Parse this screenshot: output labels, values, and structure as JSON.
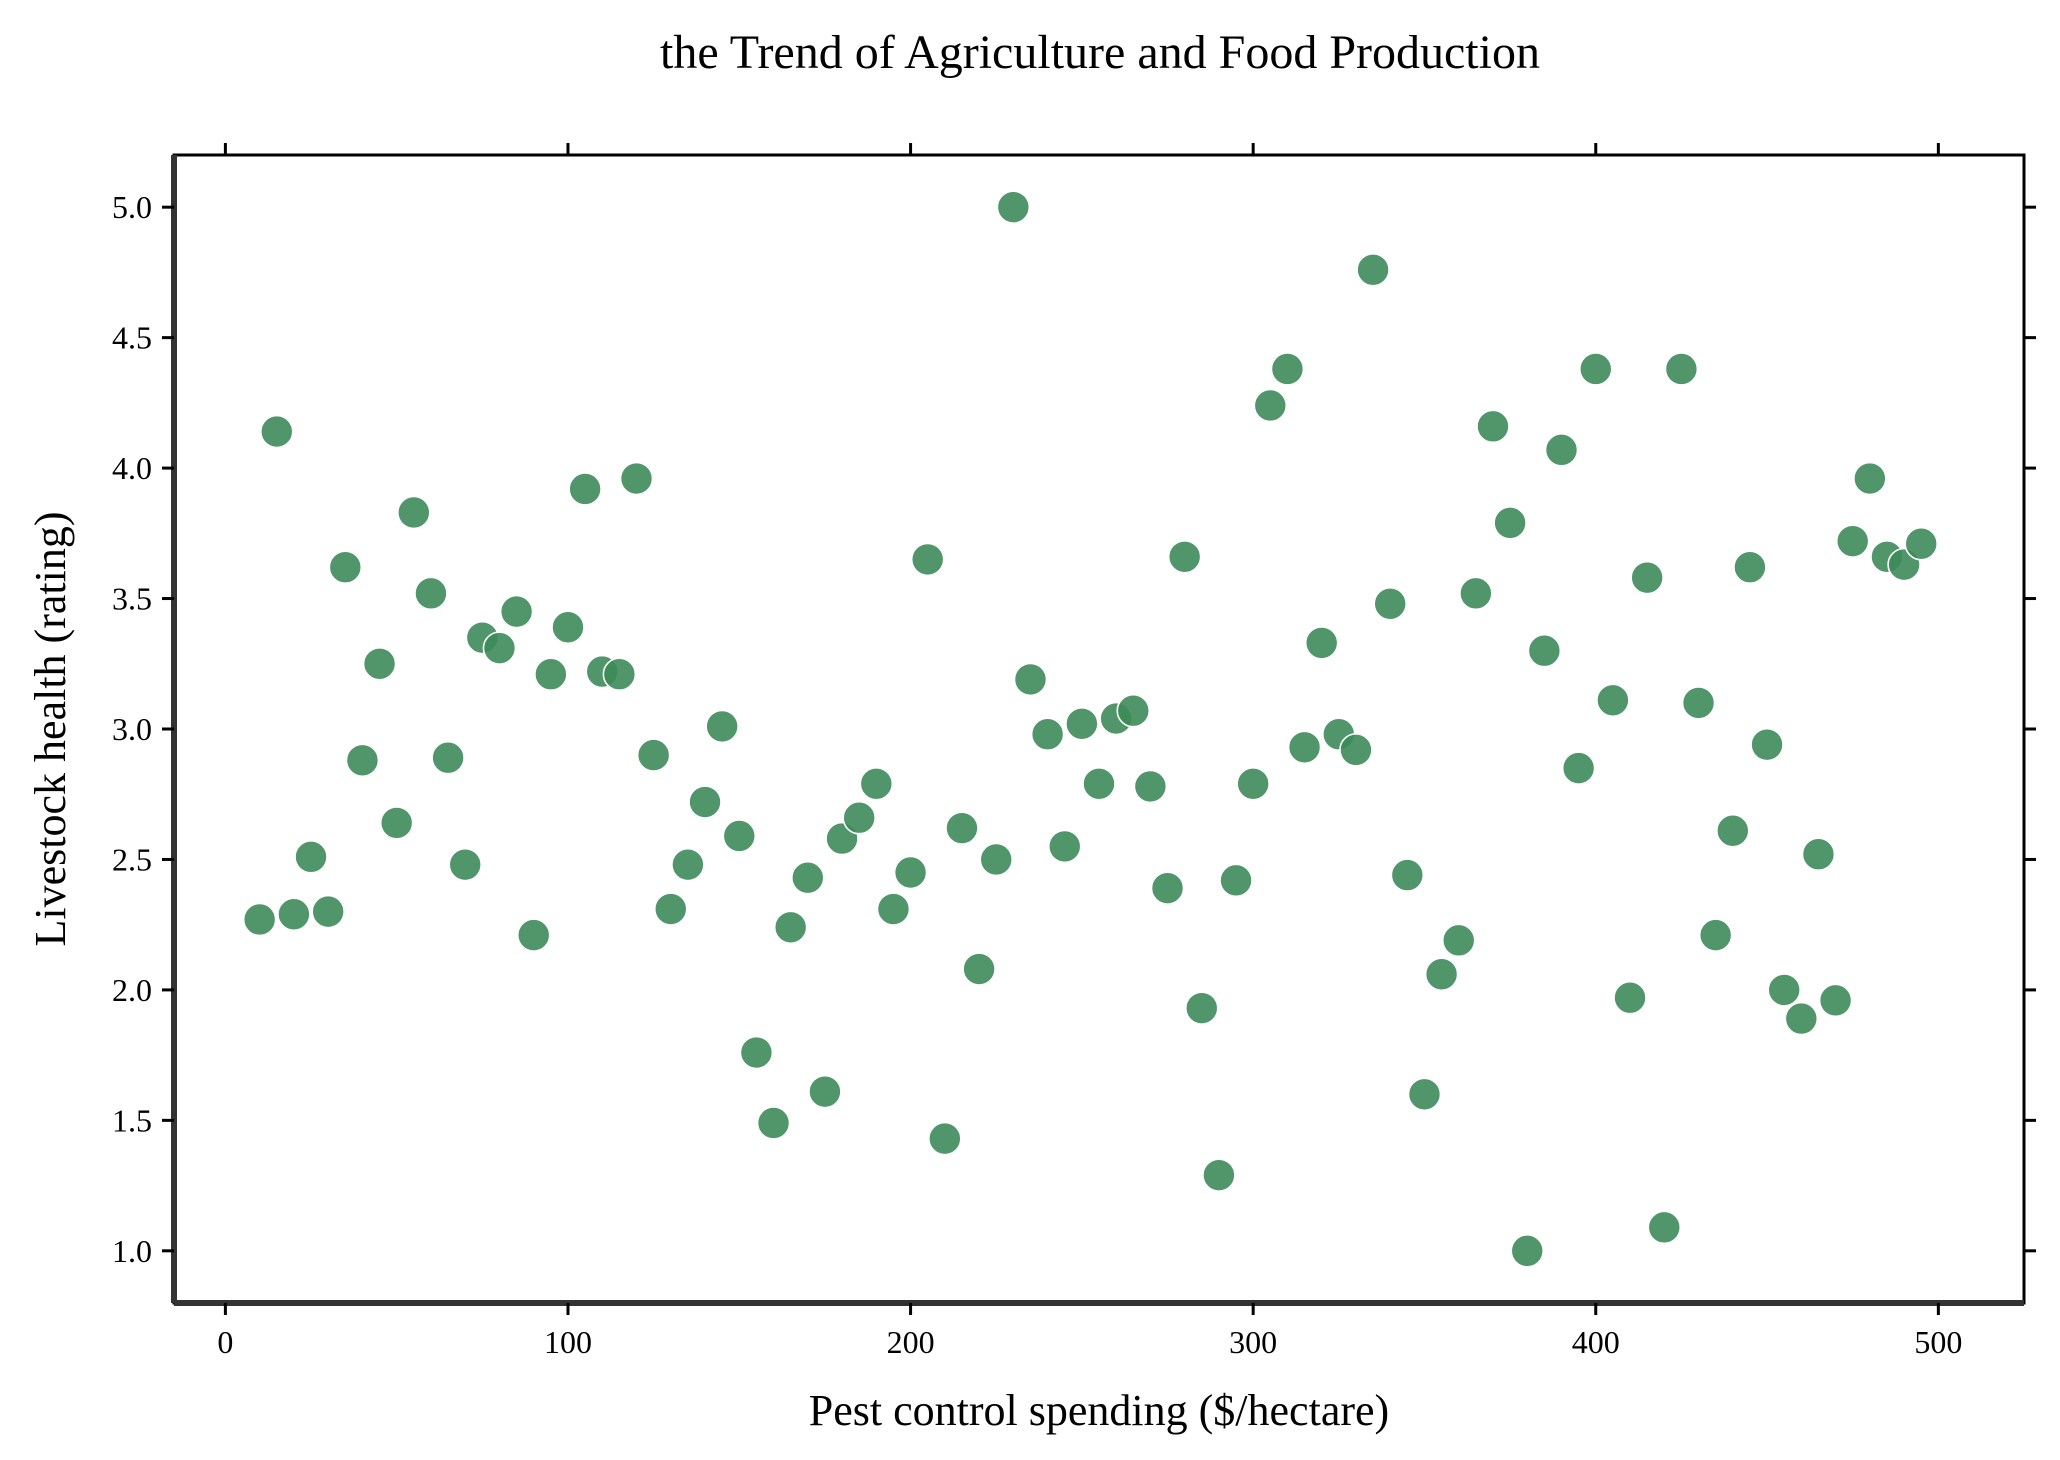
{
  "chart_data": {
    "type": "scatter",
    "title": "the Trend of Agriculture and Food Production",
    "xlabel": "Pest control spending ($/hectare)",
    "ylabel": "Livestock health (rating)",
    "xlim": [
      -15,
      525
    ],
    "ylim": [
      0.8,
      5.2
    ],
    "xticks": [
      0,
      100,
      200,
      300,
      400,
      500
    ],
    "yticks": [
      1.0,
      1.5,
      2.0,
      2.5,
      3.0,
      3.5,
      4.0,
      4.5,
      5.0
    ],
    "grid": false,
    "point_color": "#3d8b5a",
    "points": [
      {
        "x": 10,
        "y": 2.27
      },
      {
        "x": 15,
        "y": 4.14
      },
      {
        "x": 20,
        "y": 2.29
      },
      {
        "x": 25,
        "y": 2.51
      },
      {
        "x": 30,
        "y": 2.3
      },
      {
        "x": 35,
        "y": 3.62
      },
      {
        "x": 40,
        "y": 2.88
      },
      {
        "x": 45,
        "y": 3.25
      },
      {
        "x": 50,
        "y": 2.64
      },
      {
        "x": 55,
        "y": 3.83
      },
      {
        "x": 60,
        "y": 3.52
      },
      {
        "x": 65,
        "y": 2.89
      },
      {
        "x": 70,
        "y": 2.48
      },
      {
        "x": 75,
        "y": 3.35
      },
      {
        "x": 80,
        "y": 3.31
      },
      {
        "x": 85,
        "y": 3.45
      },
      {
        "x": 90,
        "y": 2.21
      },
      {
        "x": 95,
        "y": 3.21
      },
      {
        "x": 100,
        "y": 3.39
      },
      {
        "x": 105,
        "y": 3.92
      },
      {
        "x": 110,
        "y": 3.22
      },
      {
        "x": 115,
        "y": 3.21
      },
      {
        "x": 120,
        "y": 3.96
      },
      {
        "x": 125,
        "y": 2.9
      },
      {
        "x": 130,
        "y": 2.31
      },
      {
        "x": 135,
        "y": 2.48
      },
      {
        "x": 140,
        "y": 2.72
      },
      {
        "x": 145,
        "y": 3.01
      },
      {
        "x": 150,
        "y": 2.59
      },
      {
        "x": 155,
        "y": 1.76
      },
      {
        "x": 160,
        "y": 1.49
      },
      {
        "x": 165,
        "y": 2.24
      },
      {
        "x": 170,
        "y": 2.43
      },
      {
        "x": 175,
        "y": 1.61
      },
      {
        "x": 180,
        "y": 2.58
      },
      {
        "x": 185,
        "y": 2.66
      },
      {
        "x": 190,
        "y": 2.79
      },
      {
        "x": 195,
        "y": 2.31
      },
      {
        "x": 200,
        "y": 2.45
      },
      {
        "x": 205,
        "y": 3.65
      },
      {
        "x": 210,
        "y": 1.43
      },
      {
        "x": 215,
        "y": 2.62
      },
      {
        "x": 220,
        "y": 2.08
      },
      {
        "x": 225,
        "y": 2.5
      },
      {
        "x": 230,
        "y": 5.0
      },
      {
        "x": 235,
        "y": 3.19
      },
      {
        "x": 240,
        "y": 2.98
      },
      {
        "x": 245,
        "y": 2.55
      },
      {
        "x": 250,
        "y": 3.02
      },
      {
        "x": 255,
        "y": 2.79
      },
      {
        "x": 260,
        "y": 3.04
      },
      {
        "x": 265,
        "y": 3.07
      },
      {
        "x": 270,
        "y": 2.78
      },
      {
        "x": 275,
        "y": 2.39
      },
      {
        "x": 280,
        "y": 3.66
      },
      {
        "x": 285,
        "y": 1.93
      },
      {
        "x": 290,
        "y": 1.29
      },
      {
        "x": 295,
        "y": 2.42
      },
      {
        "x": 300,
        "y": 2.79
      },
      {
        "x": 305,
        "y": 4.24
      },
      {
        "x": 310,
        "y": 4.38
      },
      {
        "x": 315,
        "y": 2.93
      },
      {
        "x": 320,
        "y": 3.33
      },
      {
        "x": 325,
        "y": 2.98
      },
      {
        "x": 330,
        "y": 2.92
      },
      {
        "x": 335,
        "y": 4.76
      },
      {
        "x": 340,
        "y": 3.48
      },
      {
        "x": 345,
        "y": 2.44
      },
      {
        "x": 350,
        "y": 1.6
      },
      {
        "x": 355,
        "y": 2.06
      },
      {
        "x": 360,
        "y": 2.19
      },
      {
        "x": 365,
        "y": 3.52
      },
      {
        "x": 370,
        "y": 4.16
      },
      {
        "x": 375,
        "y": 3.79
      },
      {
        "x": 380,
        "y": 1.0
      },
      {
        "x": 385,
        "y": 3.3
      },
      {
        "x": 390,
        "y": 4.07
      },
      {
        "x": 395,
        "y": 2.85
      },
      {
        "x": 400,
        "y": 4.38
      },
      {
        "x": 405,
        "y": 3.11
      },
      {
        "x": 410,
        "y": 1.97
      },
      {
        "x": 415,
        "y": 3.58
      },
      {
        "x": 420,
        "y": 1.09
      },
      {
        "x": 425,
        "y": 4.38
      },
      {
        "x": 430,
        "y": 3.1
      },
      {
        "x": 435,
        "y": 2.21
      },
      {
        "x": 440,
        "y": 2.61
      },
      {
        "x": 445,
        "y": 3.62
      },
      {
        "x": 450,
        "y": 2.94
      },
      {
        "x": 455,
        "y": 2.0
      },
      {
        "x": 460,
        "y": 1.89
      },
      {
        "x": 465,
        "y": 2.52
      },
      {
        "x": 470,
        "y": 1.96
      },
      {
        "x": 475,
        "y": 3.72
      },
      {
        "x": 480,
        "y": 3.96
      },
      {
        "x": 485,
        "y": 3.66
      },
      {
        "x": 490,
        "y": 3.63
      },
      {
        "x": 495,
        "y": 3.71
      }
    ]
  }
}
